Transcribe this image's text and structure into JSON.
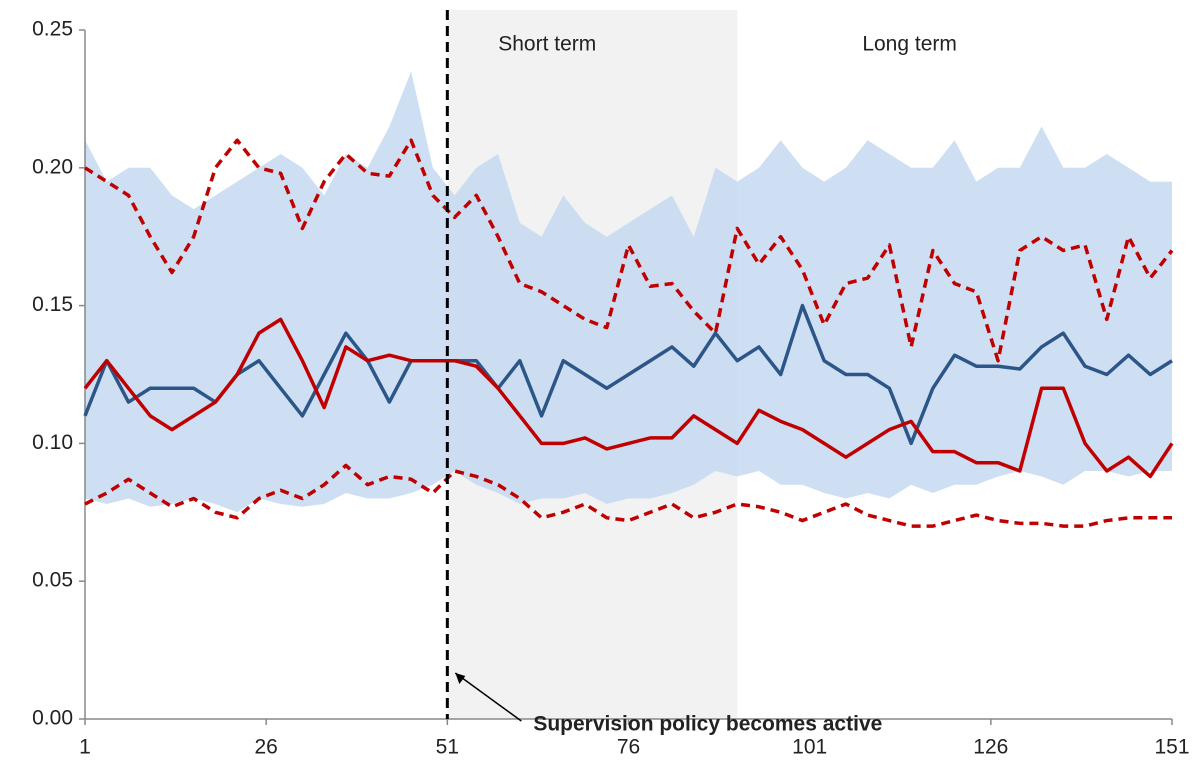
{
  "chart_data": {
    "type": "line",
    "x": [
      1,
      4,
      7,
      10,
      13,
      16,
      19,
      22,
      25,
      28,
      31,
      34,
      37,
      40,
      43,
      46,
      49,
      52,
      55,
      58,
      61,
      64,
      67,
      70,
      73,
      76,
      79,
      82,
      85,
      88,
      91,
      94,
      97,
      100,
      103,
      106,
      109,
      112,
      115,
      118,
      121,
      124,
      127,
      130,
      133,
      136,
      139,
      142,
      145,
      148,
      151
    ],
    "band": {
      "color": "#c6d9f1",
      "upper": [
        0.21,
        0.195,
        0.2,
        0.2,
        0.19,
        0.185,
        0.19,
        0.195,
        0.2,
        0.205,
        0.2,
        0.19,
        0.205,
        0.2,
        0.215,
        0.235,
        0.2,
        0.19,
        0.2,
        0.205,
        0.18,
        0.175,
        0.19,
        0.18,
        0.175,
        0.18,
        0.185,
        0.19,
        0.175,
        0.2,
        0.195,
        0.2,
        0.21,
        0.2,
        0.195,
        0.2,
        0.21,
        0.205,
        0.2,
        0.2,
        0.21,
        0.195,
        0.2,
        0.2,
        0.215,
        0.2,
        0.2,
        0.205,
        0.2,
        0.195,
        0.195
      ],
      "lower": [
        0.08,
        0.078,
        0.08,
        0.077,
        0.078,
        0.08,
        0.078,
        0.075,
        0.08,
        0.078,
        0.077,
        0.078,
        0.082,
        0.08,
        0.08,
        0.082,
        0.085,
        0.09,
        0.085,
        0.082,
        0.078,
        0.08,
        0.08,
        0.082,
        0.078,
        0.08,
        0.08,
        0.082,
        0.085,
        0.09,
        0.088,
        0.09,
        0.085,
        0.085,
        0.082,
        0.08,
        0.082,
        0.08,
        0.085,
        0.082,
        0.085,
        0.085,
        0.088,
        0.09,
        0.088,
        0.085,
        0.09,
        0.09,
        0.088,
        0.09,
        0.09
      ]
    },
    "series": [
      {
        "color": "#2c5688",
        "dashed": false,
        "values": [
          0.11,
          0.13,
          0.115,
          0.12,
          0.12,
          0.12,
          0.115,
          0.125,
          0.13,
          0.12,
          0.11,
          0.125,
          0.14,
          0.13,
          0.115,
          0.13,
          0.13,
          0.13,
          0.13,
          0.12,
          0.13,
          0.11,
          0.13,
          0.125,
          0.12,
          0.125,
          0.13,
          0.135,
          0.128,
          0.14,
          0.13,
          0.135,
          0.125,
          0.15,
          0.13,
          0.125,
          0.125,
          0.12,
          0.1,
          0.12,
          0.132,
          0.128,
          0.128,
          0.127,
          0.135,
          0.14,
          0.128,
          0.125,
          0.132,
          0.125,
          0.13
        ]
      },
      {
        "color": "#c00000",
        "dashed": false,
        "values": [
          0.12,
          0.13,
          0.12,
          0.11,
          0.105,
          0.11,
          0.115,
          0.125,
          0.14,
          0.145,
          0.13,
          0.113,
          0.135,
          0.13,
          0.132,
          0.13,
          0.13,
          0.13,
          0.128,
          0.12,
          0.11,
          0.1,
          0.1,
          0.102,
          0.098,
          0.1,
          0.102,
          0.102,
          0.11,
          0.105,
          0.1,
          0.112,
          0.108,
          0.105,
          0.1,
          0.095,
          0.1,
          0.105,
          0.108,
          0.097,
          0.097,
          0.093,
          0.093,
          0.09,
          0.12,
          0.12,
          0.1,
          0.09,
          0.095,
          0.088,
          0.1
        ]
      },
      {
        "color": "#c00000",
        "dashed": true,
        "values": [
          0.2,
          0.195,
          0.19,
          0.175,
          0.162,
          0.175,
          0.2,
          0.21,
          0.2,
          0.198,
          0.178,
          0.195,
          0.205,
          0.198,
          0.197,
          0.21,
          0.19,
          0.182,
          0.19,
          0.175,
          0.158,
          0.155,
          0.15,
          0.145,
          0.142,
          0.172,
          0.157,
          0.158,
          0.148,
          0.14,
          0.178,
          0.165,
          0.175,
          0.163,
          0.143,
          0.158,
          0.16,
          0.172,
          0.135,
          0.17,
          0.158,
          0.155,
          0.13,
          0.17,
          0.175,
          0.17,
          0.172,
          0.145,
          0.175,
          0.16,
          0.17
        ]
      },
      {
        "color": "#c00000",
        "dashed": true,
        "values": [
          0.078,
          0.082,
          0.087,
          0.082,
          0.077,
          0.08,
          0.075,
          0.073,
          0.08,
          0.083,
          0.08,
          0.085,
          0.092,
          0.085,
          0.088,
          0.087,
          0.082,
          0.09,
          0.088,
          0.085,
          0.08,
          0.073,
          0.075,
          0.078,
          0.073,
          0.072,
          0.075,
          0.078,
          0.073,
          0.075,
          0.078,
          0.077,
          0.075,
          0.072,
          0.075,
          0.078,
          0.074,
          0.072,
          0.07,
          0.07,
          0.072,
          0.074,
          0.072,
          0.071,
          0.071,
          0.07,
          0.07,
          0.072,
          0.073,
          0.073,
          0.073
        ]
      }
    ],
    "regions": [
      {
        "label": "Short term",
        "x": [
          51,
          91
        ],
        "color": "#f2f2f2"
      },
      {
        "label": "Long term",
        "x": [
          91,
          151
        ]
      }
    ],
    "vline": 51,
    "annotation": "Supervision policy becomes active",
    "xlim": [
      1,
      151
    ],
    "xticks": [
      1,
      26,
      51,
      76,
      101,
      126,
      151
    ],
    "ylim": [
      0,
      0.25
    ],
    "yticks": [
      {
        "value": 0,
        "label": "0.00"
      },
      {
        "value": 0.05,
        "label": "0.05"
      },
      {
        "value": 0.1,
        "label": "0.10"
      },
      {
        "value": 0.15,
        "label": "0.15"
      },
      {
        "value": 0.2,
        "label": "0.20"
      },
      {
        "value": 0.25,
        "label": "0.25"
      }
    ]
  }
}
